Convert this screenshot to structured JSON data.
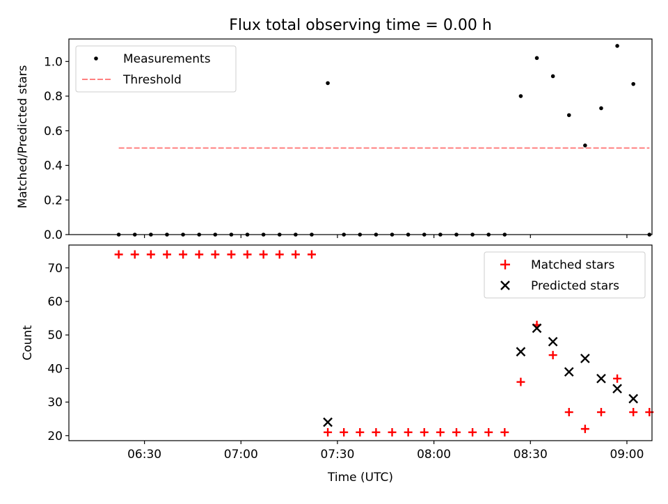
{
  "chart_data": {
    "title": "Flux total observing time = 0.00 h",
    "xlabel": "Time (UTC)",
    "x_tick_labels": [
      "06:30",
      "07:00",
      "07:30",
      "08:00",
      "08:30",
      "09:00"
    ],
    "x_tick_minutes": [
      390,
      420,
      450,
      480,
      510,
      540
    ],
    "x_range": [
      366.5,
      547.8
    ],
    "times": [
      "06:22",
      "06:27",
      "06:32",
      "06:37",
      "06:42",
      "06:47",
      "06:52",
      "06:57",
      "07:02",
      "07:07",
      "07:12",
      "07:17",
      "07:22",
      "07:27",
      "07:32",
      "07:37",
      "07:42",
      "07:47",
      "07:52",
      "07:57",
      "08:02",
      "08:07",
      "08:12",
      "08:17",
      "08:22",
      "08:27",
      "08:32",
      "08:37",
      "08:42",
      "08:47",
      "08:52",
      "08:57",
      "09:02",
      "09:07"
    ],
    "panels": [
      {
        "type": "scatter",
        "ylabel": "Matched/Predicted stars",
        "ylim": [
          0,
          1.13
        ],
        "y_ticks": [
          "0.0",
          "0.2",
          "0.4",
          "0.6",
          "0.8",
          "1.0"
        ],
        "legend_position": "upper-left",
        "series": [
          {
            "name": "Measurements",
            "marker": "dot",
            "color": "#000000",
            "values": [
              0,
              0,
              0,
              0,
              0,
              0,
              0,
              0,
              0,
              0,
              0,
              0,
              0,
              0.875,
              0,
              0,
              0,
              0,
              0,
              0,
              0,
              0,
              0,
              0,
              0,
              0.8,
              1.02,
              0.915,
              0.69,
              0.515,
              0.73,
              1.09,
              0.87,
              0
            ]
          },
          {
            "name": "Threshold",
            "marker": "dashed-line",
            "color": "#ff7f7f",
            "from": "06:22",
            "to": "09:07",
            "value": 0.5
          }
        ]
      },
      {
        "type": "scatter",
        "ylabel": "Count",
        "ylim": [
          18.5,
          76.8
        ],
        "y_ticks": [
          "20",
          "30",
          "40",
          "50",
          "60",
          "70"
        ],
        "legend_position": "upper-right",
        "series": [
          {
            "name": "Matched stars",
            "marker": "plus",
            "color": "#ff0000",
            "values": [
              74,
              74,
              74,
              74,
              74,
              74,
              74,
              74,
              74,
              74,
              74,
              74,
              74,
              21,
              21,
              21,
              21,
              21,
              21,
              21,
              21,
              21,
              21,
              21,
              21,
              36,
              53,
              44,
              27,
              22,
              27,
              37,
              27,
              27
            ]
          },
          {
            "name": "Predicted stars",
            "marker": "x",
            "color": "#000000",
            "values": [
              null,
              null,
              null,
              null,
              null,
              null,
              null,
              null,
              null,
              null,
              null,
              null,
              null,
              24,
              null,
              null,
              null,
              null,
              null,
              null,
              null,
              null,
              null,
              null,
              null,
              45,
              52,
              48,
              39,
              43,
              37,
              34,
              31,
              null
            ]
          }
        ]
      }
    ]
  }
}
